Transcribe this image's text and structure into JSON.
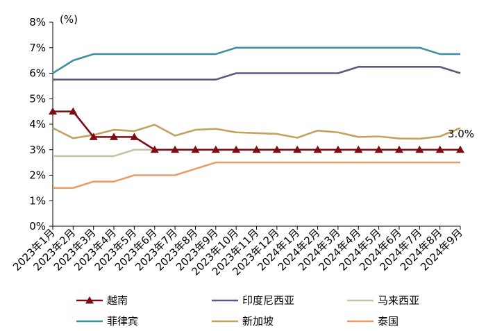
{
  "chart_data": {
    "type": "line",
    "unit_label": "(%)",
    "ylim": [
      0,
      8
    ],
    "yticks": [
      "0%",
      "1%",
      "2%",
      "3%",
      "4%",
      "5%",
      "6%",
      "7%",
      "8%"
    ],
    "categories": [
      "2023年1月",
      "2023年2月",
      "2023年3月",
      "2023年4月",
      "2023年5月",
      "2023年6月",
      "2023年7月",
      "2023年8月",
      "2023年9月",
      "2023年10月",
      "2023年11月",
      "2023年12月",
      "2024年1月",
      "2024年2月",
      "2024年3月",
      "2024年4月",
      "2024年5月",
      "2024年6月",
      "2024年7月",
      "2024年8月",
      "2024年9月"
    ],
    "grid": false,
    "legend_position": "bottom",
    "series": [
      {
        "name": "越南",
        "color": "#7b0e14",
        "marker": "triangle",
        "values": [
          4.5,
          4.5,
          3.5,
          3.5,
          3.5,
          3.0,
          3.0,
          3.0,
          3.0,
          3.0,
          3.0,
          3.0,
          3.0,
          3.0,
          3.0,
          3.0,
          3.0,
          3.0,
          3.0,
          3.0,
          3.0
        ]
      },
      {
        "name": "印度尼西亚",
        "color": "#5a5a80",
        "marker": "none",
        "values": [
          5.75,
          5.75,
          5.75,
          5.75,
          5.75,
          5.75,
          5.75,
          5.75,
          5.75,
          6.0,
          6.0,
          6.0,
          6.0,
          6.0,
          6.0,
          6.25,
          6.25,
          6.25,
          6.25,
          6.25,
          6.0
        ]
      },
      {
        "name": "马来西亚",
        "color": "#c4c3a8",
        "marker": "none",
        "values": [
          2.75,
          2.75,
          2.75,
          2.75,
          3.0,
          3.0,
          3.0,
          3.0,
          3.0,
          3.0,
          3.0,
          3.0,
          3.0,
          3.0,
          3.0,
          3.0,
          3.0,
          3.0,
          3.0,
          3.0,
          3.0
        ]
      },
      {
        "name": "菲律宾",
        "color": "#3e8fa3",
        "marker": "none",
        "values": [
          6.0,
          6.5,
          6.75,
          6.75,
          6.75,
          6.75,
          6.75,
          6.75,
          6.75,
          7.0,
          7.0,
          7.0,
          7.0,
          7.0,
          7.0,
          7.0,
          7.0,
          7.0,
          7.0,
          6.75,
          6.75
        ]
      },
      {
        "name": "新加坡",
        "color": "#c2a25d",
        "marker": "none",
        "values": [
          3.85,
          3.45,
          3.58,
          3.78,
          3.73,
          3.98,
          3.55,
          3.78,
          3.82,
          3.68,
          3.65,
          3.62,
          3.47,
          3.75,
          3.68,
          3.5,
          3.52,
          3.44,
          3.43,
          3.52,
          3.85
        ]
      },
      {
        "name": "泰国",
        "color": "#eb9a6a",
        "marker": "none",
        "values": [
          1.5,
          1.5,
          1.75,
          1.75,
          2.0,
          2.0,
          2.0,
          2.25,
          2.5,
          2.5,
          2.5,
          2.5,
          2.5,
          2.5,
          2.5,
          2.5,
          2.5,
          2.5,
          2.5,
          2.5,
          2.5
        ]
      }
    ],
    "annotations": [
      {
        "text": "3.0%",
        "series": "越南",
        "index": 20
      }
    ]
  }
}
